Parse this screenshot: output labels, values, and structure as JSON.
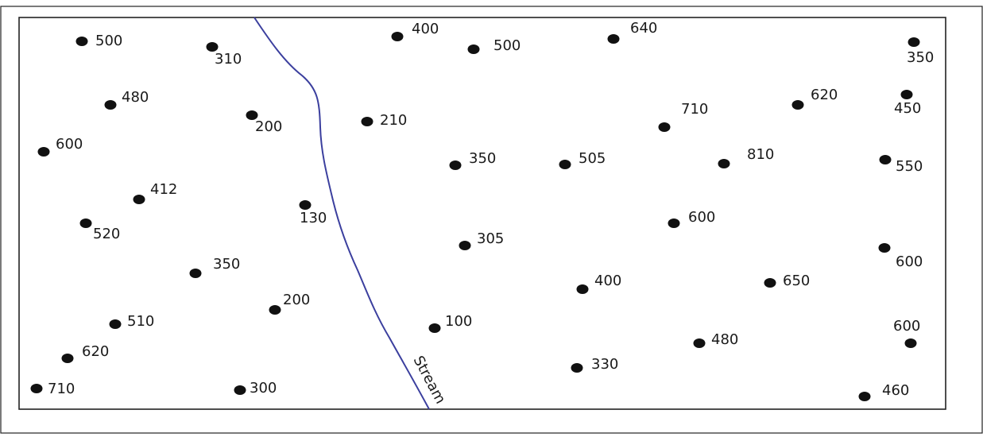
{
  "map": {
    "stream_label": "Stream",
    "colors": {
      "point": "#111111",
      "stream": "#3b3f9e",
      "border": "#222222"
    },
    "points": [
      {
        "value": "500"
      },
      {
        "value": "310"
      },
      {
        "value": "400"
      },
      {
        "value": "500"
      },
      {
        "value": "640"
      },
      {
        "value": "350"
      },
      {
        "value": "480"
      },
      {
        "value": "200"
      },
      {
        "value": "210"
      },
      {
        "value": "710"
      },
      {
        "value": "620"
      },
      {
        "value": "450"
      },
      {
        "value": "600"
      },
      {
        "value": "350"
      },
      {
        "value": "505"
      },
      {
        "value": "810"
      },
      {
        "value": "550"
      },
      {
        "value": "412"
      },
      {
        "value": "130"
      },
      {
        "value": "520"
      },
      {
        "value": "600"
      },
      {
        "value": "305"
      },
      {
        "value": "600"
      },
      {
        "value": "350"
      },
      {
        "value": "400"
      },
      {
        "value": "650"
      },
      {
        "value": "200"
      },
      {
        "value": "510"
      },
      {
        "value": "100"
      },
      {
        "value": "600"
      },
      {
        "value": "480"
      },
      {
        "value": "620"
      },
      {
        "value": "330"
      },
      {
        "value": "710"
      },
      {
        "value": "300"
      },
      {
        "value": "460"
      }
    ]
  }
}
